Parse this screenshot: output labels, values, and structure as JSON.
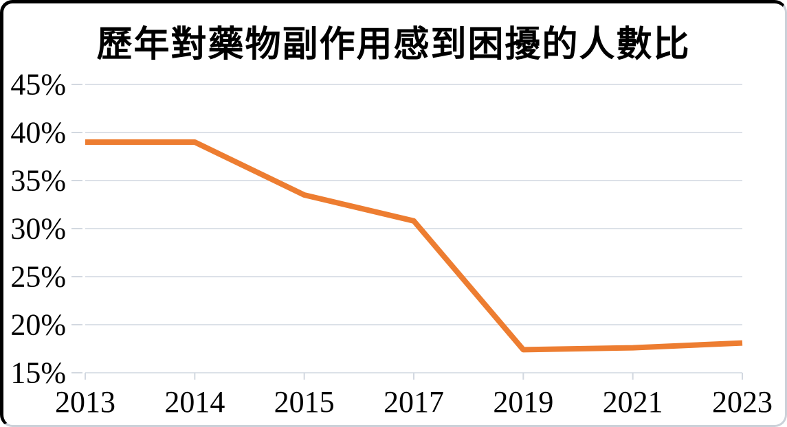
{
  "card": {
    "background": "#FFFFFF",
    "border_top_left_color": "#000000",
    "border_bottom_right_color": "#CBD1D9"
  },
  "chart_data": {
    "type": "line",
    "title": "歷年對藥物副作用感到困擾的人數比",
    "categories": [
      "2013",
      "2014",
      "2015",
      "2017",
      "2019",
      "2021",
      "2023"
    ],
    "values": [
      39.0,
      39.0,
      33.5,
      30.8,
      17.4,
      17.6,
      18.1
    ],
    "xlabel": "",
    "ylabel": "",
    "ylim": [
      15,
      45
    ],
    "y_tick_step": 5,
    "y_tick_labels": [
      "15%",
      "20%",
      "25%",
      "30%",
      "35%",
      "40%",
      "45%"
    ],
    "grid": true,
    "legend_position": "none",
    "line_color": "#ED7D31",
    "line_width": 8,
    "grid_color": "#DCE1E8",
    "tick_color": "#D2D8E0",
    "text_color": "#000000",
    "axis_font_size": 44
  }
}
